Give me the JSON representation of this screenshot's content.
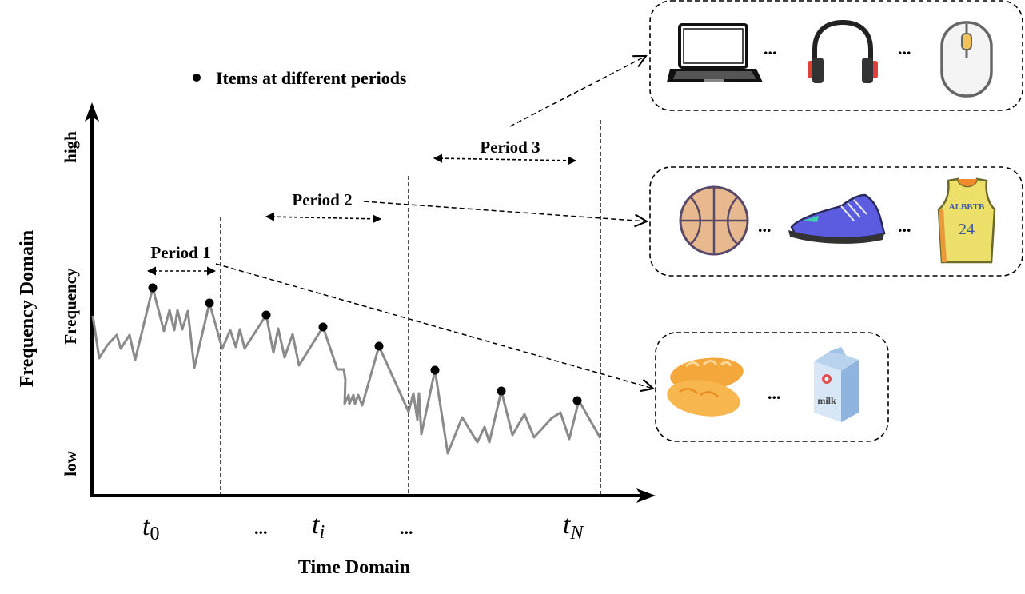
{
  "legend": {
    "label": "Items at different periods"
  },
  "axes": {
    "y_title": "Frequency Domain",
    "y_mid": "Frequency",
    "y_high": "high",
    "y_low": "low",
    "x_title": "Time Domain",
    "ticks": [
      {
        "main": "t",
        "sub": "0"
      },
      {
        "main": "...",
        "sub": ""
      },
      {
        "main": "t",
        "sub": "i"
      },
      {
        "main": "...",
        "sub": ""
      },
      {
        "main": "t",
        "sub": "N"
      }
    ]
  },
  "periods": [
    {
      "label": "Period 1",
      "group": "food"
    },
    {
      "label": "Period 2",
      "group": "sports"
    },
    {
      "label": "Period 3",
      "group": "electronics"
    }
  ],
  "groups": {
    "electronics": {
      "items": [
        "laptop-icon",
        "headphones-icon",
        "mouse-icon"
      ],
      "ellipsis": "..."
    },
    "sports": {
      "items": [
        "basketball-icon",
        "sneaker-icon",
        "jersey-icon"
      ],
      "ellipsis": "...",
      "jersey_text": "ALBBTB",
      "jersey_number": "24"
    },
    "food": {
      "items": [
        "bread-icon",
        "milk-carton-icon"
      ],
      "ellipsis": "...",
      "milk_text": "milk"
    }
  },
  "colors": {
    "line": "#8a8a8a",
    "axis": "#000000",
    "laptop": "#111111",
    "headphone_ear": "#e0403a",
    "basketball": "#e8b98f",
    "sneaker": "#5b5ce0",
    "jersey": "#ece06a",
    "bread": "#f4a73a",
    "milk": "#8fb4dd"
  }
}
